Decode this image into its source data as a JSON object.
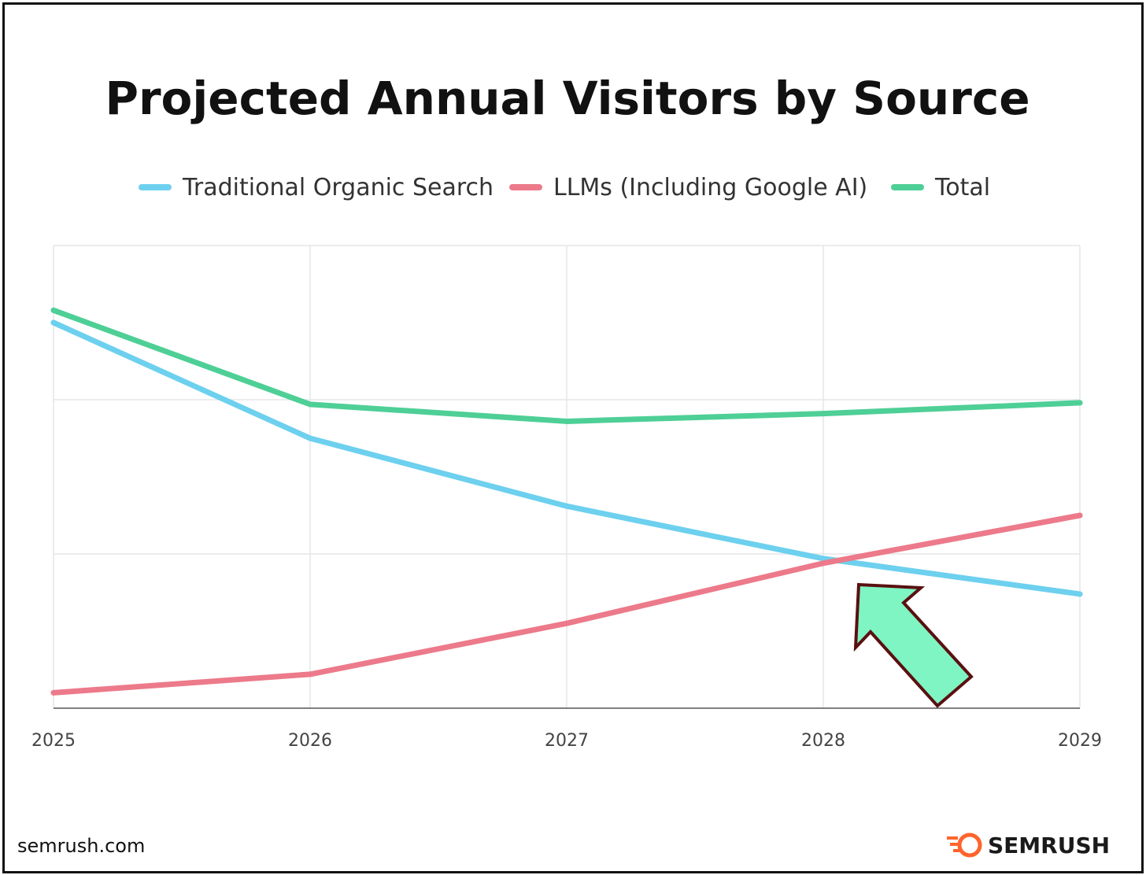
{
  "chart_data": {
    "type": "line",
    "title": "Projected Annual Visitors by Source",
    "x": [
      "2025",
      "2026",
      "2027",
      "2028",
      "2029"
    ],
    "series": [
      {
        "name": "Traditional Organic Search",
        "color": "#6dd0ee",
        "values": [
          2.5,
          1.75,
          1.31,
          0.97,
          0.74
        ]
      },
      {
        "name": "LLMs (Including Google AI)",
        "color": "#ec7a8a",
        "values": [
          0.1,
          0.22,
          0.55,
          0.94,
          1.25
        ]
      },
      {
        "name": "Total",
        "color": "#4ecf96",
        "values": [
          2.58,
          1.97,
          1.86,
          1.91,
          1.98
        ]
      }
    ],
    "ylim": [
      0,
      3
    ],
    "y_tick_labels_shown": false,
    "grid": true,
    "legend": "top-center"
  },
  "annotation": {
    "type": "arrow",
    "color": "#7ef5c3",
    "outline": "#5a1010"
  },
  "footer": {
    "source": "semrush.com",
    "brand": "SEMRUSH",
    "brand_color": "#ff642d"
  }
}
